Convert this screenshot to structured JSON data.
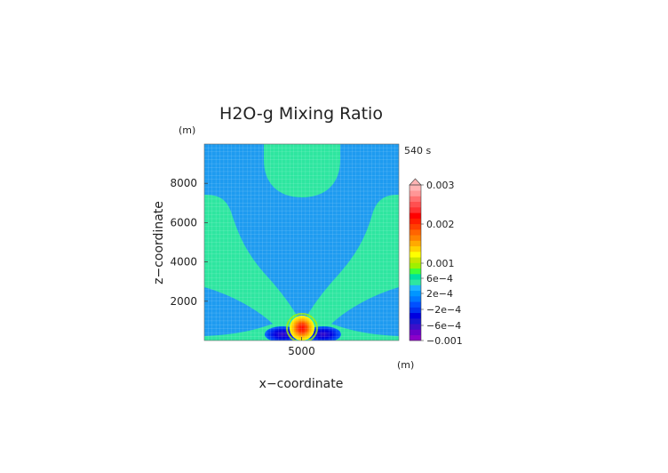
{
  "chart_data": {
    "type": "heatmap",
    "title": "H2O-g Mixing Ratio",
    "xlabel": "x−coordinate",
    "ylabel": "z−coordinate",
    "x_unit": "(m)",
    "y_unit": "(m)",
    "time_label": "540 s",
    "xlim": [
      0,
      10000
    ],
    "ylim": [
      0,
      10000
    ],
    "x_ticks": [
      {
        "value": 5000,
        "label": "5000"
      }
    ],
    "y_ticks": [
      {
        "value": 2000,
        "label": "2000"
      },
      {
        "value": 4000,
        "label": "4000"
      },
      {
        "value": 6000,
        "label": "6000"
      },
      {
        "value": 8000,
        "label": "8000"
      }
    ],
    "colorbar": {
      "bands": [
        {
          "value": -0.001,
          "color": "#8c00c8"
        },
        {
          "value": -0.0008,
          "color": "#6a00c8"
        },
        {
          "value": -0.0007,
          "color": "#3c10c8"
        },
        {
          "value": -0.0006,
          "color": "#1818d0"
        },
        {
          "value": -0.0005,
          "color": "#0000e0"
        },
        {
          "value": -0.0004,
          "color": "#0032f0"
        },
        {
          "value": -0.0003,
          "color": "#0050ff"
        },
        {
          "value": -0.0002,
          "color": "#0078ff"
        },
        {
          "value": -0.0001,
          "color": "#0096ff"
        },
        {
          "value": 0,
          "color": "#1eb4ff"
        },
        {
          "value": 0.0001,
          "color": "#2ee6a0"
        },
        {
          "value": 0.0002,
          "color": "#00e0a0"
        },
        {
          "value": 0.0003,
          "color": "#3cff3c"
        },
        {
          "value": 0.0004,
          "color": "#a0f000"
        },
        {
          "value": 0.0005,
          "color": "#c8e600"
        },
        {
          "value": 0.0006,
          "color": "#ffff00"
        },
        {
          "value": 0.0008,
          "color": "#ffd200"
        },
        {
          "value": 0.001,
          "color": "#ffaa00"
        },
        {
          "value": 0.0012,
          "color": "#ff8200"
        },
        {
          "value": 0.0014,
          "color": "#ff6400"
        },
        {
          "value": 0.0016,
          "color": "#ff4000"
        },
        {
          "value": 0.0018,
          "color": "#ff1e00"
        },
        {
          "value": 0.002,
          "color": "#ff0000"
        },
        {
          "value": 0.0022,
          "color": "#ff3232"
        },
        {
          "value": 0.0024,
          "color": "#ff5050"
        },
        {
          "value": 0.0026,
          "color": "#ff7070"
        },
        {
          "value": 0.0028,
          "color": "#ff9696"
        },
        {
          "value": 0.003,
          "color": "#ffb4b4"
        }
      ],
      "labels": [
        "0.003",
        "0.002",
        "0.001",
        "6e−4",
        "2e−4",
        "−2e−4",
        "−6e−4",
        "−0.001"
      ]
    },
    "colors": {
      "background_field": "#1e9bf0",
      "green_field": "#2ee6a0",
      "grid": "#ffffff"
    }
  }
}
